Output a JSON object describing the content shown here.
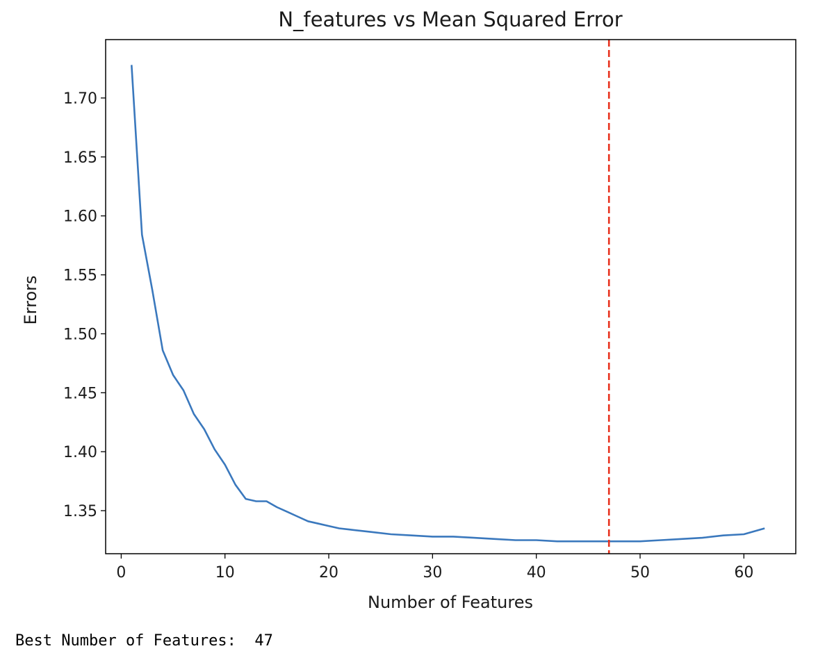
{
  "chart_data": {
    "type": "line",
    "title": "N_features vs Mean Squared Error",
    "xlabel": "Number of Features",
    "ylabel": "Errors",
    "xlim": [
      -1.5,
      65
    ],
    "ylim": [
      1.3135,
      1.7495
    ],
    "xticks": [
      0,
      10,
      20,
      30,
      40,
      50,
      60
    ],
    "yticks": [
      1.35,
      1.4,
      1.45,
      1.5,
      1.55,
      1.6,
      1.65,
      1.7
    ],
    "grid": false,
    "legend": "none",
    "series": [
      {
        "color": "#3a78bd",
        "x": [
          1,
          2,
          3,
          4,
          5,
          6,
          7,
          8,
          9,
          10,
          11,
          12,
          13,
          14,
          15,
          16,
          17,
          18,
          19,
          20,
          21,
          22,
          24,
          26,
          28,
          30,
          32,
          34,
          36,
          38,
          40,
          42,
          44,
          46,
          47,
          48,
          50,
          52,
          54,
          56,
          58,
          60,
          62
        ],
        "y": [
          1.728,
          1.584,
          1.537,
          1.486,
          1.465,
          1.452,
          1.432,
          1.419,
          1.402,
          1.389,
          1.372,
          1.36,
          1.358,
          1.358,
          1.353,
          1.349,
          1.345,
          1.341,
          1.339,
          1.337,
          1.335,
          1.334,
          1.332,
          1.33,
          1.329,
          1.328,
          1.328,
          1.327,
          1.326,
          1.325,
          1.325,
          1.324,
          1.324,
          1.324,
          1.324,
          1.324,
          1.324,
          1.325,
          1.326,
          1.327,
          1.329,
          1.33,
          1.335
        ]
      }
    ],
    "annotations": [
      {
        "type": "vline",
        "x": 47,
        "color": "#e8321e",
        "style": "dashed"
      }
    ]
  },
  "output": {
    "label": "Best Number of Features:",
    "value": "47"
  }
}
